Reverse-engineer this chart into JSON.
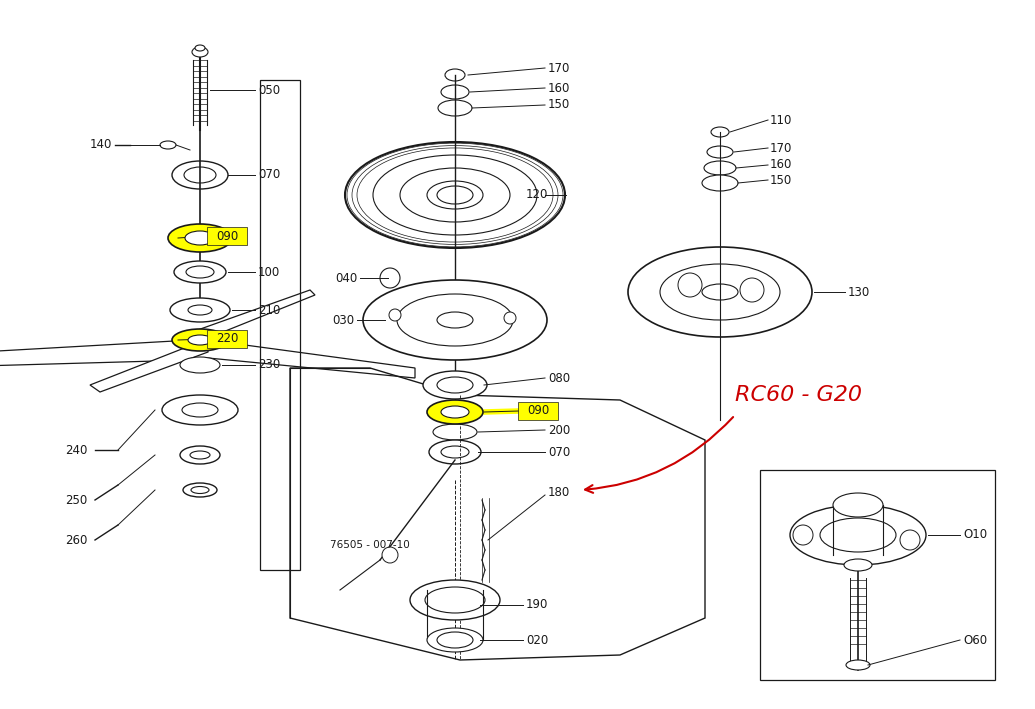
{
  "bg_color": "#ffffff",
  "lc": "#1a1a1a",
  "yellow": "#ffff00",
  "red": "#cc0000",
  "annotation": "RC60 - G20",
  "diagram_no": "76505 - 007-10",
  "figw": 10.35,
  "figh": 7.09,
  "dpi": 100
}
